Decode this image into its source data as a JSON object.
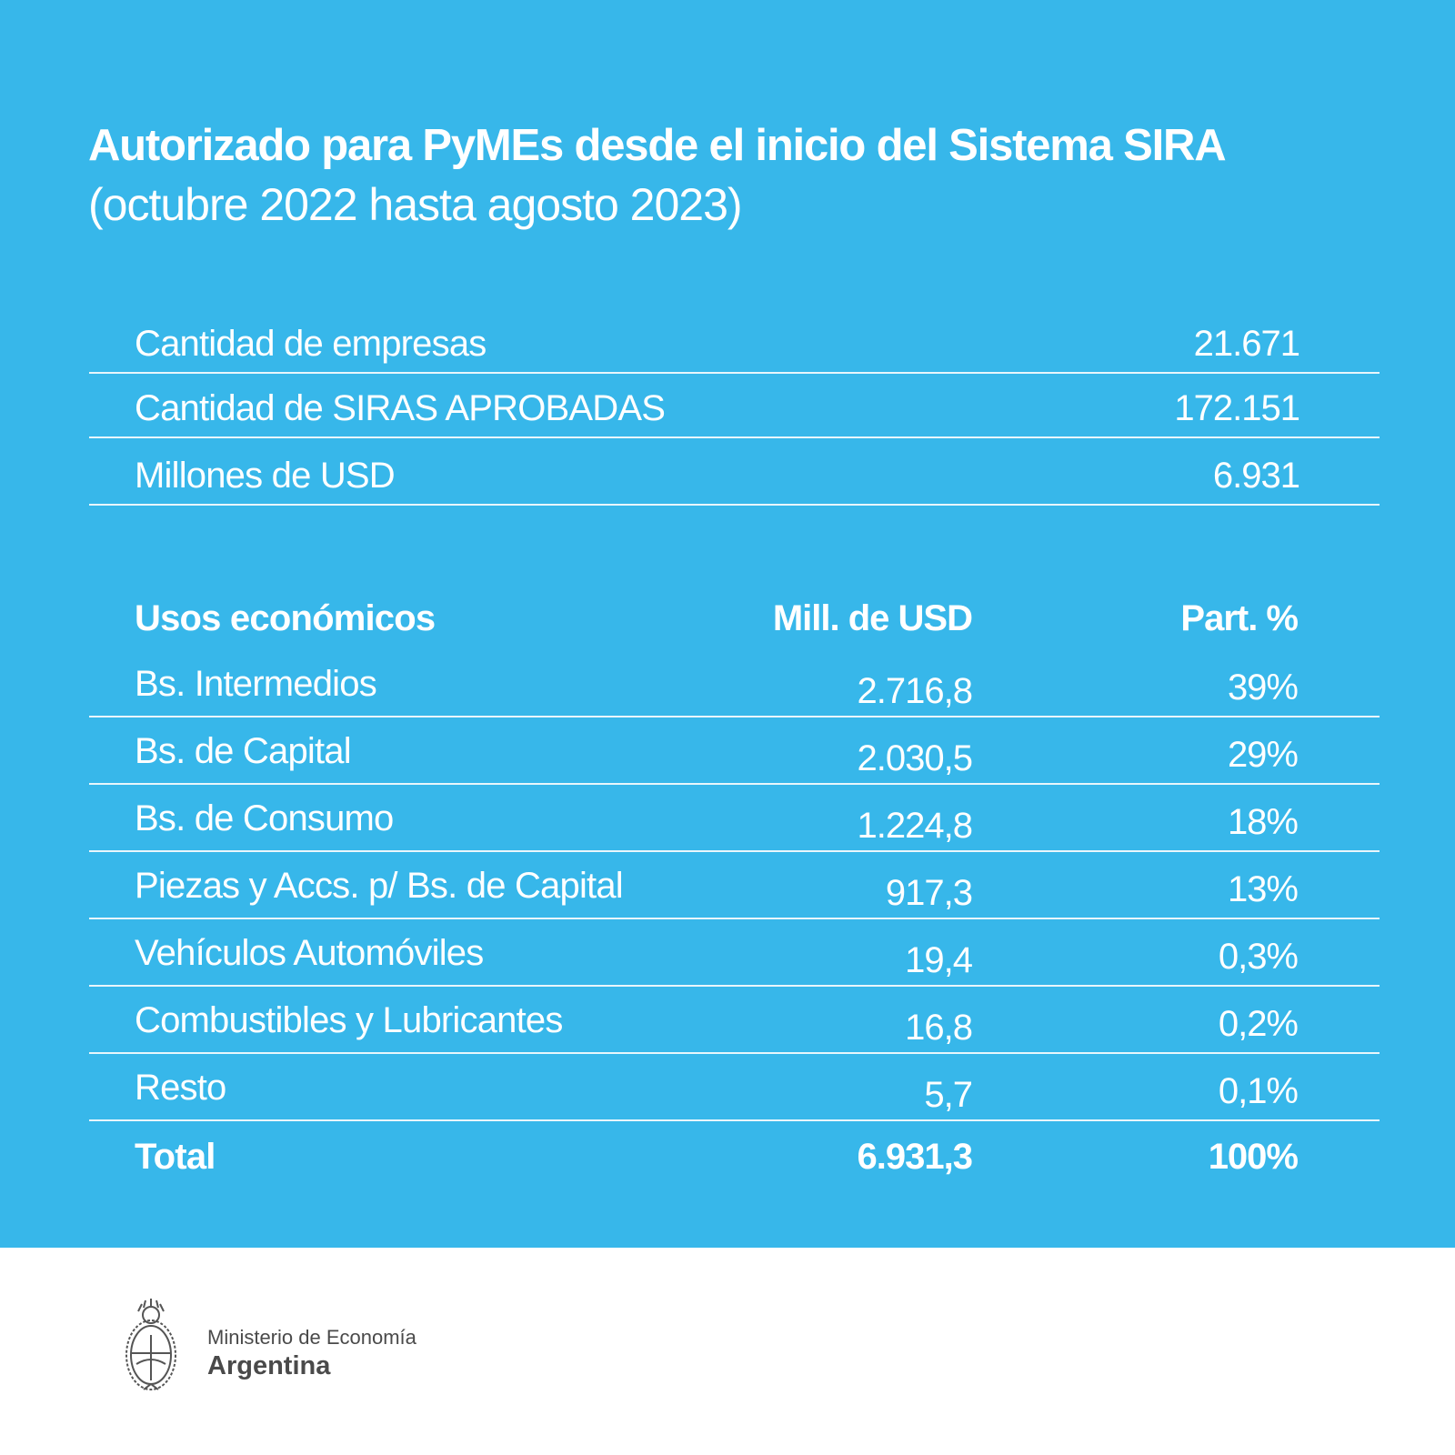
{
  "header": {
    "title": "Autorizado para PyMEs desde el inicio del Sistema SIRA",
    "subtitle": "(octubre 2022 hasta agosto 2023)"
  },
  "summary": [
    {
      "label": "Cantidad de empresas",
      "value": "21.671"
    },
    {
      "label": "Cantidad de SIRAS APROBADAS",
      "value": "172.151"
    },
    {
      "label": "Millones de USD",
      "value": "6.931"
    }
  ],
  "table": {
    "headers": [
      "Usos económicos",
      "Mill. de USD",
      "Part. %"
    ],
    "rows": [
      [
        "Bs. Intermedios",
        "2.716,8",
        "39%"
      ],
      [
        "Bs. de Capital",
        "2.030,5",
        "29%"
      ],
      [
        "Bs. de Consumo",
        "1.224,8",
        "18%"
      ],
      [
        "Piezas y Accs. p/ Bs. de Capital",
        "917,3",
        "13%"
      ],
      [
        "Vehículos Automóviles",
        "19,4",
        "0,3%"
      ],
      [
        "Combustibles y Lubricantes",
        "16,8",
        "0,2%"
      ],
      [
        "Resto",
        "5,7",
        "0,1%"
      ]
    ],
    "total": [
      "Total",
      "6.931,3",
      "100%"
    ]
  },
  "footer": {
    "ministry": "Ministerio de Economía",
    "country": "Argentina",
    "logo_icon": "coat-of-arms-icon"
  },
  "colors": {
    "background": "#37b7ea",
    "text": "#ffffff",
    "footer_text": "#4a4a4a"
  }
}
